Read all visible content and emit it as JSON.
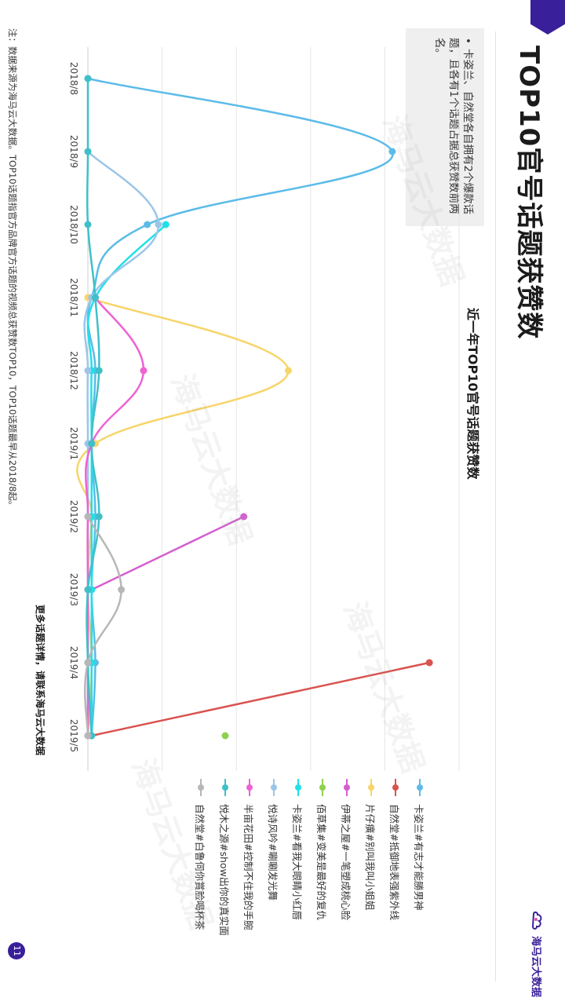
{
  "page": {
    "title": "TOP10官号话题获赞数",
    "brand": "海马云大数据",
    "page_number": "11",
    "watermark": "海马云大数据"
  },
  "note": {
    "bullet": "•",
    "text": "卡姿兰、自然堂各自拥有2个爆款话题，且各有1个话题占据总获赞数前两名。"
  },
  "more_info": "更多话题详情，请联系海马云大数据",
  "footnote": "注：数据来源为海马云大数据。TOP10话题指官方品牌官方话题的视频总获赞数TOP10，TOP10话题最早从2018/8起。",
  "colors": {
    "s1": "#5bbbe8",
    "s2": "#d9534f",
    "s3": "#f7d56a",
    "s4": "#d45fd0",
    "s5": "#8fd14f",
    "s6": "#20e0e8",
    "s7": "#9cc5e8",
    "s8": "#ef62d4",
    "s9": "#3fc0c8",
    "s10": "#b7b7b7"
  },
  "chart_data": {
    "type": "line",
    "title": "近一年TOP10官号话题获赞数",
    "xlabel": "",
    "ylabel": "",
    "grid": true,
    "legend_position": "right",
    "categories": [
      "2018/8",
      "2018/9",
      "2018/10",
      "2018/11",
      "2018/12",
      "2019/1",
      "2019/2",
      "2019/3",
      "2019/4",
      "2019/5"
    ],
    "ylim": [
      0,
      100
    ],
    "series": [
      {
        "name": "卡姿兰#有志才能勝男神",
        "color": "#5bbbe8",
        "values": [
          0,
          82,
          16,
          1,
          2,
          1,
          2,
          1,
          2,
          1
        ]
      },
      {
        "name": "自然堂#抵御地表强紫外线",
        "color": "#d9534f",
        "values": [
          null,
          null,
          null,
          null,
          null,
          null,
          null,
          null,
          92,
          1
        ]
      },
      {
        "name": "片仔癀#别叫我叫小姐姐",
        "color": "#f7d56a",
        "values": [
          null,
          null,
          null,
          0,
          54,
          2,
          1,
          0,
          1,
          0
        ]
      },
      {
        "name": "伊蒂之屋#一笔塑成桃心脸",
        "color": "#d45fd0",
        "values": [
          null,
          null,
          null,
          null,
          null,
          null,
          42,
          1,
          null,
          null
        ]
      },
      {
        "name": "佰草集#变美是最好的复仇",
        "color": "#8fd14f",
        "values": [
          null,
          null,
          null,
          null,
          null,
          null,
          null,
          null,
          null,
          37
        ]
      },
      {
        "name": "卡姿兰#看我大眼睛小红唇",
        "color": "#20e0e8",
        "values": [
          null,
          null,
          21,
          2,
          1,
          1,
          1,
          1,
          1,
          1
        ]
      },
      {
        "name": "悦诗风吟#唰唰发光舞",
        "color": "#9cc5e8",
        "values": [
          null,
          0,
          19,
          1,
          0,
          0,
          0,
          0,
          0,
          0
        ]
      },
      {
        "name": "半亩花田#控制不住我的手腕",
        "color": "#ef62d4",
        "values": [
          null,
          null,
          null,
          2,
          15,
          1,
          0,
          0,
          0,
          0
        ]
      },
      {
        "name": "悦木之源#show出你的真实面",
        "color": "#3fc0c8",
        "values": [
          0,
          0,
          0,
          2,
          3,
          1,
          3,
          0,
          0,
          1
        ]
      },
      {
        "name": "自然堂#白鲁伺你賞脸喝杯茶",
        "color": "#b7b7b7",
        "values": [
          null,
          null,
          null,
          null,
          null,
          null,
          0,
          9,
          0,
          0
        ]
      }
    ]
  }
}
